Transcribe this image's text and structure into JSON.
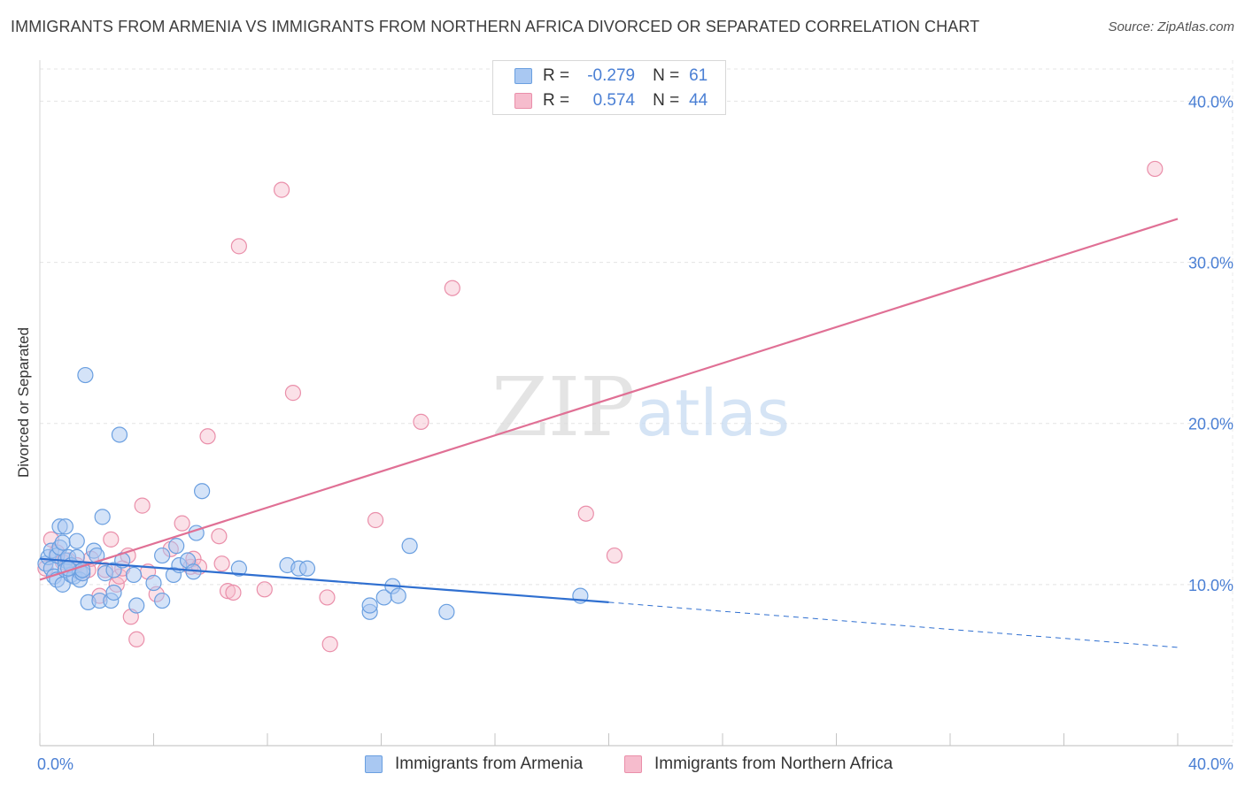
{
  "header": {
    "title": "IMMIGRANTS FROM ARMENIA VS IMMIGRANTS FROM NORTHERN AFRICA DIVORCED OR SEPARATED CORRELATION CHART",
    "source": "Source: ZipAtlas.com"
  },
  "watermark": {
    "zip": "ZIP",
    "atlas": "atlas"
  },
  "legend": {
    "r_label": "R =",
    "n_label": "N =",
    "series": [
      {
        "r": "-0.279",
        "n": "61"
      },
      {
        "r": "0.574",
        "n": "44"
      }
    ]
  },
  "colors": {
    "armenia_fill": "#a9c8f2",
    "armenia_stroke": "#6a9fe0",
    "armenia_line": "#2f6fd0",
    "nafrica_fill": "#f6bccd",
    "nafrica_stroke": "#ea8faa",
    "nafrica_line": "#e07095",
    "tick_color": "#4a7fd4"
  },
  "chart_data": {
    "type": "scatter",
    "title": "IMMIGRANTS FROM ARMENIA VS IMMIGRANTS FROM NORTHERN AFRICA DIVORCED OR SEPARATED CORRELATION CHART",
    "xlabel": "",
    "ylabel": "Divorced or Separated",
    "xlim": [
      0,
      40
    ],
    "ylim": [
      0,
      42
    ],
    "x_tick_labels": [
      "0.0%",
      "40.0%"
    ],
    "y_ticks": [
      10,
      20,
      30,
      40
    ],
    "y_tick_labels": [
      "10.0%",
      "20.0%",
      "30.0%",
      "40.0%"
    ],
    "grid": true,
    "series": [
      {
        "name": "Immigrants from Armenia",
        "r": -0.279,
        "n": 61,
        "trend": {
          "x0": 0,
          "y0": 11.6,
          "x1": 20,
          "y1": 8.9,
          "dash_to_x": 40,
          "dash_to_y": 6.1
        },
        "points": [
          [
            0.2,
            11.3
          ],
          [
            0.3,
            11.7
          ],
          [
            0.4,
            12.1
          ],
          [
            0.4,
            11.0
          ],
          [
            0.5,
            10.5
          ],
          [
            0.6,
            10.3
          ],
          [
            0.6,
            11.8
          ],
          [
            0.7,
            13.6
          ],
          [
            0.7,
            12.3
          ],
          [
            0.8,
            12.6
          ],
          [
            0.9,
            11.5
          ],
          [
            0.9,
            13.6
          ],
          [
            0.9,
            10.9
          ],
          [
            0.8,
            10.0
          ],
          [
            1.0,
            11.7
          ],
          [
            1.1,
            10.6
          ],
          [
            1.1,
            11.2
          ],
          [
            1.2,
            10.5
          ],
          [
            1.3,
            11.7
          ],
          [
            1.3,
            12.7
          ],
          [
            1.4,
            10.8
          ],
          [
            1.4,
            10.3
          ],
          [
            1.5,
            10.7
          ],
          [
            1.5,
            10.9
          ],
          [
            1.6,
            23.0
          ],
          [
            1.7,
            8.9
          ],
          [
            1.9,
            12.1
          ],
          [
            2.0,
            11.8
          ],
          [
            2.1,
            9.0
          ],
          [
            2.2,
            14.2
          ],
          [
            2.3,
            10.7
          ],
          [
            2.5,
            9.0
          ],
          [
            2.6,
            9.5
          ],
          [
            2.6,
            10.9
          ],
          [
            2.8,
            19.3
          ],
          [
            2.9,
            11.5
          ],
          [
            3.3,
            10.6
          ],
          [
            3.4,
            8.7
          ],
          [
            4.0,
            10.1
          ],
          [
            4.3,
            11.8
          ],
          [
            4.3,
            9.0
          ],
          [
            4.7,
            10.6
          ],
          [
            4.8,
            12.4
          ],
          [
            4.9,
            11.2
          ],
          [
            5.2,
            11.5
          ],
          [
            5.4,
            10.8
          ],
          [
            5.5,
            13.2
          ],
          [
            5.7,
            15.8
          ],
          [
            7.0,
            11.0
          ],
          [
            8.7,
            11.2
          ],
          [
            9.1,
            11.0
          ],
          [
            9.4,
            11.0
          ],
          [
            11.6,
            8.3
          ],
          [
            11.6,
            8.7
          ],
          [
            12.1,
            9.2
          ],
          [
            12.4,
            9.9
          ],
          [
            12.6,
            9.3
          ],
          [
            13.0,
            12.4
          ],
          [
            14.3,
            8.3
          ],
          [
            19.0,
            9.3
          ],
          [
            1.0,
            11.0
          ]
        ]
      },
      {
        "name": "Immigrants from Northern Africa",
        "r": 0.574,
        "n": 44,
        "trend": {
          "x0": 0,
          "y0": 10.3,
          "x1": 40,
          "y1": 32.7
        },
        "points": [
          [
            0.2,
            11.0
          ],
          [
            0.4,
            12.8
          ],
          [
            0.6,
            12.0
          ],
          [
            0.8,
            11.4
          ],
          [
            1.0,
            11.5
          ],
          [
            1.2,
            11.0
          ],
          [
            1.3,
            11.2
          ],
          [
            1.5,
            10.7
          ],
          [
            1.7,
            10.9
          ],
          [
            1.8,
            11.6
          ],
          [
            2.1,
            9.3
          ],
          [
            2.3,
            10.9
          ],
          [
            2.5,
            12.8
          ],
          [
            2.7,
            10.0
          ],
          [
            2.8,
            10.5
          ],
          [
            3.1,
            11.8
          ],
          [
            3.2,
            8.0
          ],
          [
            3.4,
            6.6
          ],
          [
            3.6,
            14.9
          ],
          [
            3.8,
            10.8
          ],
          [
            4.1,
            9.4
          ],
          [
            4.6,
            12.2
          ],
          [
            5.0,
            13.8
          ],
          [
            5.3,
            11.1
          ],
          [
            5.4,
            11.6
          ],
          [
            5.6,
            11.1
          ],
          [
            5.9,
            19.2
          ],
          [
            6.3,
            13.0
          ],
          [
            6.4,
            11.3
          ],
          [
            6.6,
            9.6
          ],
          [
            6.8,
            9.5
          ],
          [
            7.0,
            31.0
          ],
          [
            7.9,
            9.7
          ],
          [
            8.5,
            34.5
          ],
          [
            8.9,
            21.9
          ],
          [
            10.1,
            9.2
          ],
          [
            10.2,
            6.3
          ],
          [
            11.8,
            14.0
          ],
          [
            13.4,
            20.1
          ],
          [
            14.5,
            28.4
          ],
          [
            19.2,
            14.4
          ],
          [
            20.2,
            11.8
          ],
          [
            39.2,
            35.8
          ],
          [
            2.9,
            11.0
          ]
        ]
      }
    ]
  },
  "bottom_legend": {
    "items": [
      "Immigrants from Armenia",
      "Immigrants from Northern Africa"
    ]
  }
}
